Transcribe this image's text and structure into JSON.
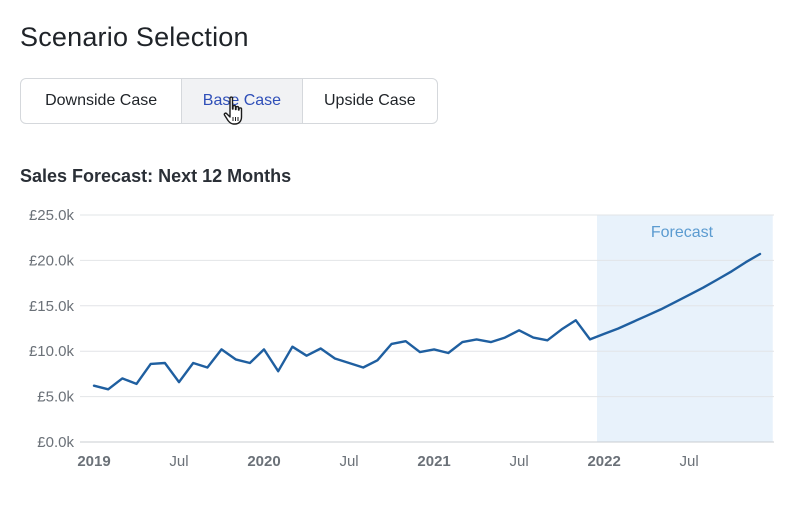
{
  "page": {
    "title": "Scenario Selection"
  },
  "scenario_selector": {
    "options": [
      {
        "label": "Downside Case",
        "selected": false
      },
      {
        "label": "Base Case",
        "selected": true
      },
      {
        "label": "Upside Case",
        "selected": false
      }
    ]
  },
  "cursor": {
    "icon": "hand-pointer-icon"
  },
  "colors": {
    "line": "#1f5fa0",
    "forecast_band": "#e8f2fb",
    "forecast_text": "#5b9bd0",
    "grid": "#e2e4e7",
    "selected_text": "#2f4fb8"
  },
  "chart_data": {
    "type": "line",
    "title": "Sales Forecast: Next 12 Months",
    "y_tick_labels": [
      "£0.0k",
      "£5.0k",
      "£10.0k",
      "£15.0k",
      "£20.0k",
      "£25.0k"
    ],
    "ylim": [
      0,
      25000
    ],
    "x_tick_labels": [
      {
        "label": "2019",
        "month_index": 0,
        "bold": true
      },
      {
        "label": "Jul",
        "month_index": 6,
        "bold": false
      },
      {
        "label": "2020",
        "month_index": 12,
        "bold": true
      },
      {
        "label": "Jul",
        "month_index": 18,
        "bold": false
      },
      {
        "label": "2021",
        "month_index": 24,
        "bold": true
      },
      {
        "label": "Jul",
        "month_index": 30,
        "bold": false
      },
      {
        "label": "2022",
        "month_index": 36,
        "bold": true
      },
      {
        "label": "Jul",
        "month_index": 42,
        "bold": false
      }
    ],
    "x_months": [
      "2019-01",
      "2019-02",
      "2019-03",
      "2019-04",
      "2019-05",
      "2019-06",
      "2019-07",
      "2019-08",
      "2019-09",
      "2019-10",
      "2019-11",
      "2019-12",
      "2020-01",
      "2020-02",
      "2020-03",
      "2020-04",
      "2020-05",
      "2020-06",
      "2020-07",
      "2020-08",
      "2020-09",
      "2020-10",
      "2020-11",
      "2020-12",
      "2021-01",
      "2021-02",
      "2021-03",
      "2021-04",
      "2021-05",
      "2021-06",
      "2021-07",
      "2021-08",
      "2021-09",
      "2021-10",
      "2021-11",
      "2021-12",
      "2022-01",
      "2022-02",
      "2022-03",
      "2022-04",
      "2022-05",
      "2022-06",
      "2022-07",
      "2022-08",
      "2022-09",
      "2022-10",
      "2022-11",
      "2022-12"
    ],
    "series": [
      {
        "values": [
          6200,
          5800,
          7000,
          6400,
          8600,
          8700,
          6600,
          8700,
          8200,
          10200,
          9100,
          8700,
          10200,
          7800,
          10500,
          9500,
          10300,
          9200,
          8700,
          8200,
          9000,
          10800,
          11100,
          9900,
          10200,
          9800,
          11000,
          11300,
          11000,
          11500,
          12300,
          11500,
          11200,
          12400,
          13400,
          11300,
          11900,
          12500,
          13200,
          13900,
          14600,
          15400,
          16200,
          17000,
          17900,
          18800,
          19800,
          20700
        ]
      }
    ],
    "forecast_region": {
      "start": "2022-01",
      "end": "2022-12",
      "label": "Forecast"
    },
    "grid": true
  }
}
